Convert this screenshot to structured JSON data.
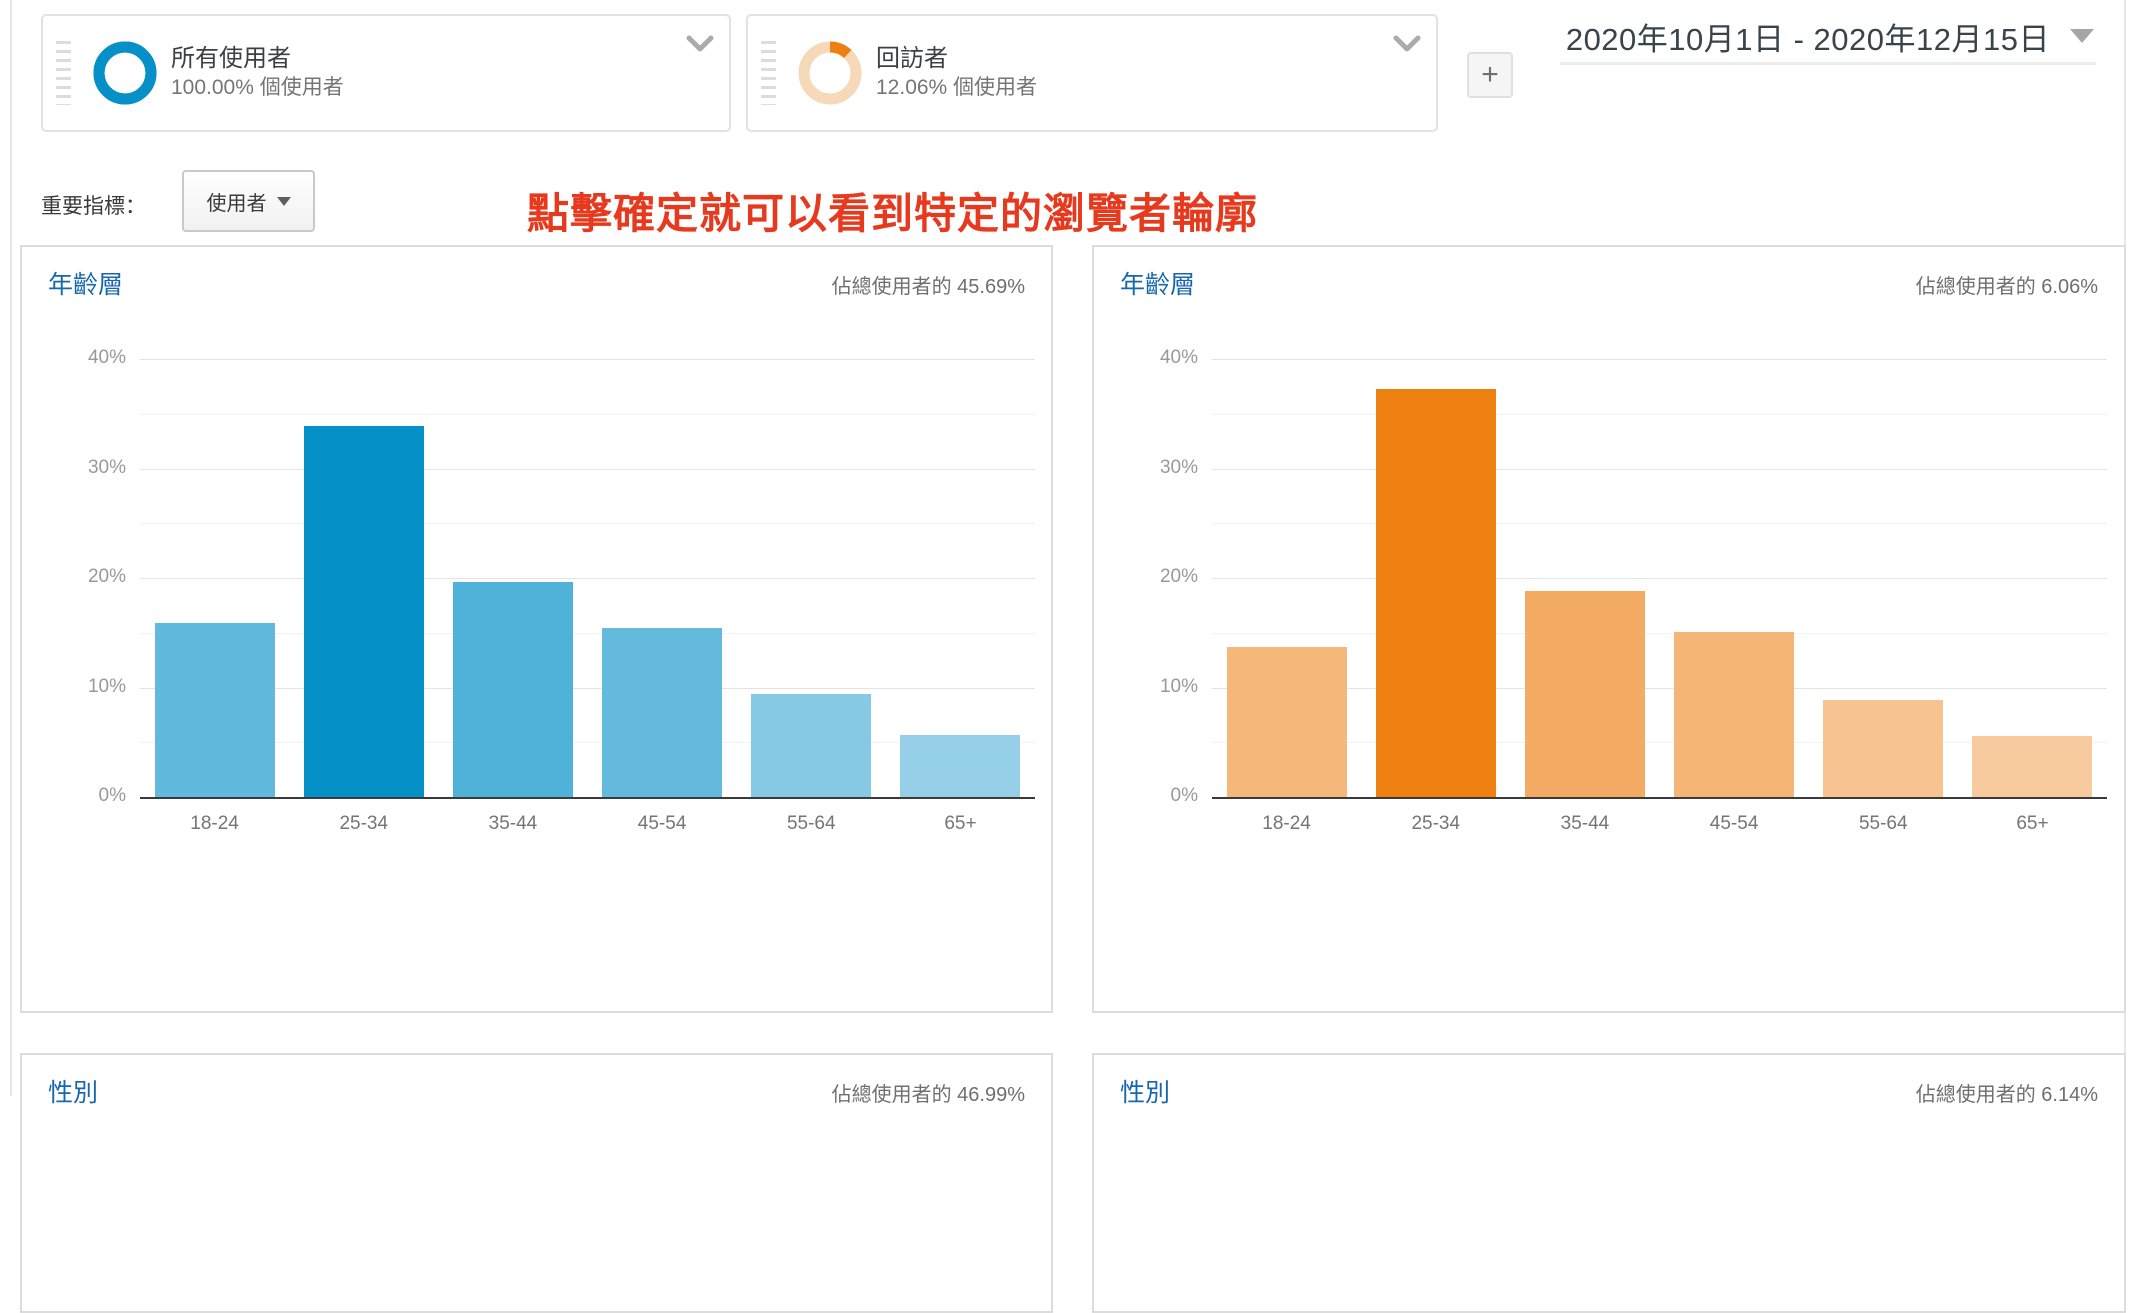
{
  "segments": {
    "cards": [
      {
        "title": "所有使用者",
        "subtitle": "100.00% 個使用者",
        "ring_percent": 100,
        "ring_color": "#0590C8",
        "ring_track_color": "#0590C8"
      },
      {
        "title": "回訪者",
        "subtitle": "12.06% 個使用者",
        "ring_percent": 12,
        "ring_color": "#EE8012",
        "ring_track_color": "#F5D9B9"
      }
    ],
    "add_button_label": "+"
  },
  "toolbar": {
    "date_range": "2020年10月1日 - 2020年12月15日",
    "metric_label": "重要指標：",
    "metric_value": "使用者"
  },
  "annotation": {
    "text": "點擊確定就可以看到特定的瀏覽者輪廓",
    "color": "#E6391D"
  },
  "colors": {
    "blue_highlight": "#0590C8",
    "orange_highlight": "#EE8012",
    "title_link_blue": "#1766B0"
  },
  "chart_data": [
    {
      "type": "bar",
      "title": "年齡層",
      "share_label": "佔總使用者的 45.69%",
      "categories": [
        "18-24",
        "25-34",
        "35-44",
        "45-54",
        "55-64",
        "65+"
      ],
      "values": [
        15.9,
        33.9,
        19.6,
        15.4,
        9.4,
        5.7
      ],
      "bar_colors": [
        "#61B9DD",
        "#0590C8",
        "#50B2D9",
        "#64BADD",
        "#85C9E4",
        "#96D0E8"
      ],
      "xlabel": "",
      "ylabel": "",
      "ylim": [
        0,
        40
      ],
      "yticks": [
        40,
        30,
        20,
        10,
        0
      ],
      "ytick_suffix": "%",
      "minor_gridlines": [
        35,
        25,
        15,
        5
      ],
      "grid": true,
      "legend": false
    },
    {
      "type": "bar",
      "title": "年齡層",
      "share_label": "佔總使用者的 6.06%",
      "categories": [
        "18-24",
        "25-34",
        "35-44",
        "45-54",
        "55-64",
        "65+"
      ],
      "values": [
        13.7,
        37.3,
        18.8,
        15.1,
        8.9,
        5.6
      ],
      "bar_colors": [
        "#F5B87A",
        "#EE8012",
        "#F4AC65",
        "#F5B576",
        "#F7C390",
        "#F8CB9E"
      ],
      "xlabel": "",
      "ylabel": "",
      "ylim": [
        0,
        40
      ],
      "yticks": [
        40,
        30,
        20,
        10,
        0
      ],
      "ytick_suffix": "%",
      "minor_gridlines": [
        35,
        25,
        15,
        5
      ],
      "grid": true,
      "legend": false
    }
  ],
  "gender_panels": [
    {
      "title": "性別",
      "share_label": "佔總使用者的 46.99%"
    },
    {
      "title": "性別",
      "share_label": "佔總使用者的 6.14%"
    }
  ]
}
